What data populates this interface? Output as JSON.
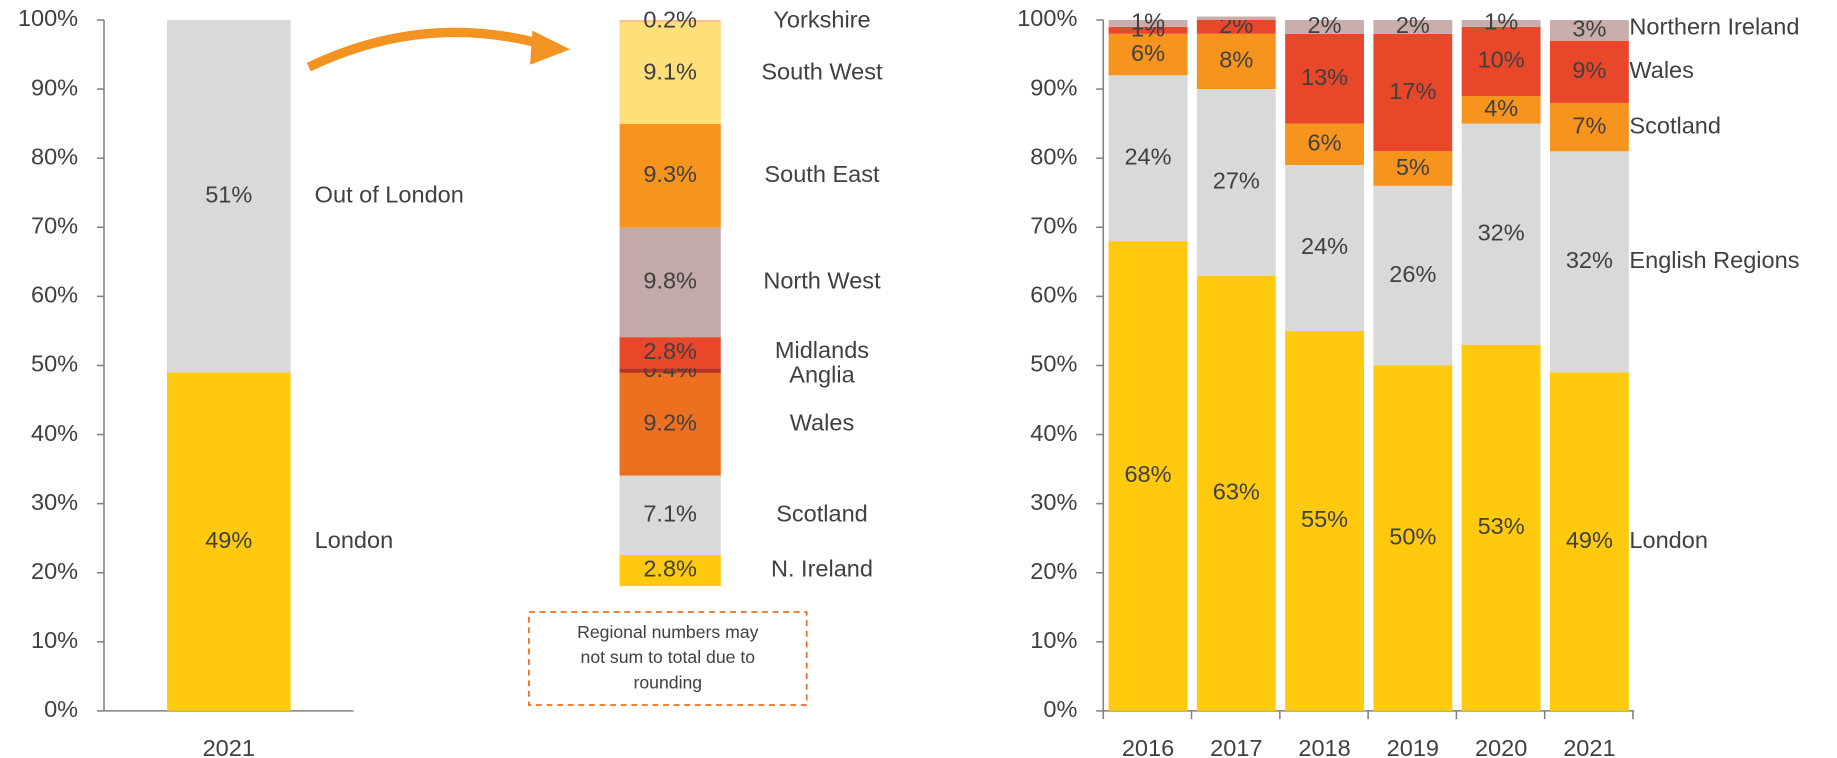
{
  "chart_data": [
    {
      "type": "stacked",
      "categories": [
        "2021"
      ],
      "ylim": [
        0,
        100
      ],
      "yticks": [
        {
          "value": 0,
          "label": "0%"
        },
        {
          "value": 10,
          "label": "10%"
        },
        {
          "value": 20,
          "label": "20%"
        },
        {
          "value": 30,
          "label": "30%"
        },
        {
          "value": 40,
          "label": "40%"
        },
        {
          "value": 50,
          "label": "50%"
        },
        {
          "value": 60,
          "label": "60%"
        },
        {
          "value": 70,
          "label": "70%"
        },
        {
          "value": 80,
          "label": "80%"
        },
        {
          "value": 90,
          "label": "90%"
        },
        {
          "value": 100,
          "label": "100%"
        }
      ],
      "series": [
        {
          "name": "London",
          "color": "#ffc90e",
          "values": [
            49
          ],
          "value_labels": [
            "49%"
          ]
        },
        {
          "name": "Out of London",
          "color": "#d9d9d9",
          "values": [
            51
          ],
          "value_labels": [
            "51%"
          ]
        }
      ]
    },
    {
      "type": "stacked",
      "annotation": [
        "Regional  numbers may",
        "not sum to total due to",
        "rounding"
      ],
      "series": [
        {
          "name": "N. Ireland",
          "color": "#ffc90e",
          "values": [
            2.8
          ],
          "value_labels": [
            "2.8%"
          ]
        },
        {
          "name": "Scotland",
          "color": "#d9d9d9",
          "values": [
            7.1
          ],
          "value_labels": [
            "7.1%"
          ]
        },
        {
          "name": "Wales",
          "color": "#ec7020",
          "values": [
            9.2
          ],
          "value_labels": [
            "9.2%"
          ]
        },
        {
          "name": "Anglia",
          "color": "#b8321f",
          "values": [
            0.4
          ],
          "value_labels": [
            "0.4%"
          ]
        },
        {
          "name": "Midlands",
          "color": "#e8472a",
          "values": [
            2.8
          ],
          "value_labels": [
            "2.8%"
          ]
        },
        {
          "name": "North West",
          "color": "#c4a9a9",
          "values": [
            9.8
          ],
          "value_labels": [
            "9.8%"
          ]
        },
        {
          "name": "South East",
          "color": "#f7941d",
          "values": [
            9.3
          ],
          "value_labels": [
            "9.3%"
          ]
        },
        {
          "name": "South West",
          "color": "#fde07a",
          "values": [
            9.1
          ],
          "value_labels": [
            "9.1%"
          ]
        },
        {
          "name": "Yorkshire",
          "color": "#f9c08a",
          "values": [
            0.2
          ],
          "value_labels": [
            "0.2%"
          ]
        }
      ]
    },
    {
      "type": "stacked",
      "categories": [
        "2016",
        "2017",
        "2018",
        "2019",
        "2020",
        "2021"
      ],
      "ylim": [
        0,
        100
      ],
      "yticks": [
        {
          "value": 0,
          "label": "0%"
        },
        {
          "value": 10,
          "label": "10%"
        },
        {
          "value": 20,
          "label": "20%"
        },
        {
          "value": 30,
          "label": "30%"
        },
        {
          "value": 40,
          "label": "40%"
        },
        {
          "value": 50,
          "label": "50%"
        },
        {
          "value": 60,
          "label": "60%"
        },
        {
          "value": 70,
          "label": "70%"
        },
        {
          "value": 80,
          "label": "80%"
        },
        {
          "value": 90,
          "label": "90%"
        },
        {
          "value": 100,
          "label": "100%"
        }
      ],
      "series": [
        {
          "name": "London",
          "color": "#ffc90e",
          "values": [
            68,
            63,
            55,
            50,
            53,
            49
          ],
          "value_labels": [
            "68%",
            "63%",
            "55%",
            "50%",
            "53%",
            "49%"
          ]
        },
        {
          "name": "English Regions",
          "color": "#d9d9d9",
          "values": [
            24,
            27,
            24,
            26,
            32,
            32
          ],
          "value_labels": [
            "24%",
            "27%",
            "24%",
            "26%",
            "32%",
            "32%"
          ]
        },
        {
          "name": "Scotland",
          "color": "#f7941d",
          "values": [
            6,
            8,
            6,
            5,
            4,
            7
          ],
          "value_labels": [
            "6%",
            "8%",
            "6%",
            "5%",
            "4%",
            "7%"
          ]
        },
        {
          "name": "Wales",
          "color": "#e8472a",
          "values": [
            1,
            2,
            13,
            17,
            10,
            9
          ],
          "value_labels": [
            "1%",
            "2%",
            "13%",
            "17%",
            "10%",
            "9%"
          ]
        },
        {
          "name": "Northern Ireland",
          "color": "#c9adad",
          "values": [
            1,
            0.5,
            2,
            2,
            1,
            3
          ],
          "value_labels": [
            "1%",
            null,
            "2%",
            "2%",
            "1%",
            "3%"
          ]
        }
      ]
    }
  ]
}
